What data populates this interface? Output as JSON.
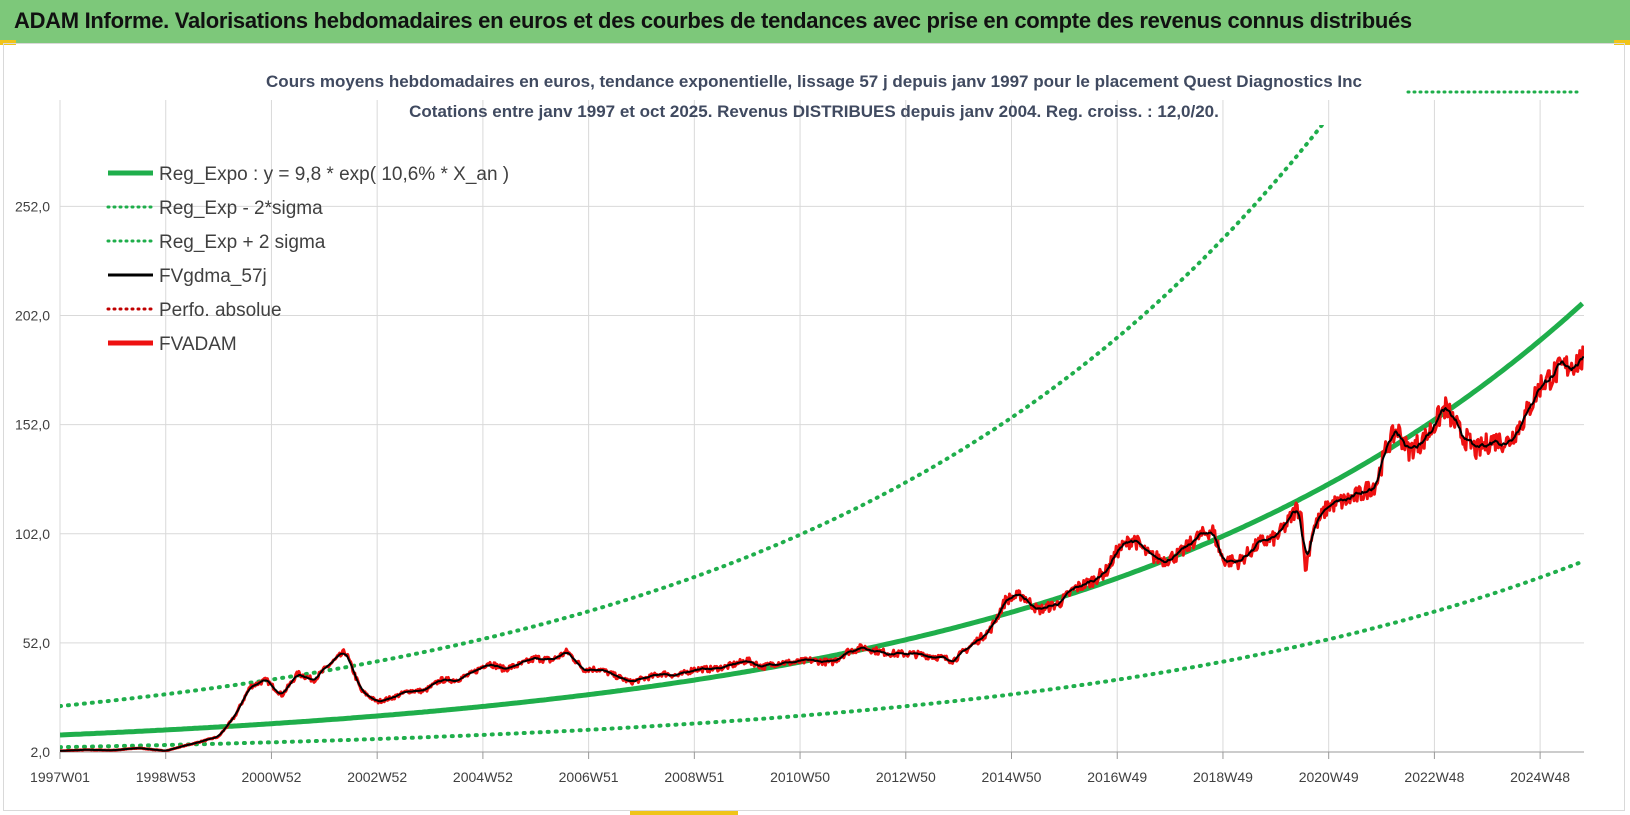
{
  "header": {
    "title": "ADAM Informe. Valorisations hebdomadaires en euros et des courbes de tendances avec prise en compte des revenus connus distribués"
  },
  "colors": {
    "header_bg": "#7dc87a",
    "reg_expo": "#1fae4b",
    "sigma": "#1fae4b",
    "fvgdma": "#000000",
    "perfo": "#c00000",
    "fvadam": "#ee1111",
    "accent_bar": "#f0c419"
  },
  "chart_data": {
    "type": "line",
    "title_line1": "Cours moyens hebdomadaires en euros, tendance exponentielle, lissage 57 j depuis janv 1997 pour le placement Quest Diagnostics Inc",
    "title_line2": "Cotations entre janv 1997 et oct 2025. Revenus DISTRIBUES depuis janv 2004.  Reg. croiss. : 12,0/20.",
    "xlabel": "",
    "ylabel": "",
    "x_tick_labels": [
      "1997W01",
      "1998W53",
      "2000W52",
      "2002W52",
      "2004W52",
      "2006W51",
      "2008W51",
      "2010W50",
      "2012W50",
      "2014W50",
      "2016W49",
      "2018W49",
      "2020W49",
      "2022W48",
      "2024W48"
    ],
    "x_tick_years": [
      1997.0,
      1999.0,
      2001.0,
      2003.0,
      2005.0,
      2007.0,
      2009.0,
      2011.0,
      2013.0,
      2015.0,
      2017.0,
      2019.0,
      2021.0,
      2023.0,
      2025.0
    ],
    "x_range": [
      1997.0,
      2025.83
    ],
    "y_ticks": [
      "2,0",
      "52,0",
      "102,0",
      "152,0",
      "202,0",
      "252,0"
    ],
    "y_tick_values": [
      2,
      52,
      102,
      152,
      202,
      252
    ],
    "ylim": [
      2,
      287
    ],
    "grid": true,
    "legend_position": "top-left",
    "legend": [
      {
        "label": "Reg_Expo : y = 9,8 * exp( 10,6% *  X_an )",
        "style": "solid-thick",
        "color_key": "reg_expo"
      },
      {
        "label": "Reg_Exp - 2*sigma",
        "style": "dotted",
        "color_key": "sigma"
      },
      {
        "label": "Reg_Exp + 2 sigma",
        "style": "dotted",
        "color_key": "sigma"
      },
      {
        "label": "FVgdma_57j",
        "style": "solid",
        "color_key": "fvgdma"
      },
      {
        "label": "Perfo. absolue",
        "style": "dotted",
        "color_key": "perfo"
      },
      {
        "label": "FVADAM",
        "style": "solid-thick",
        "color_key": "fvadam"
      }
    ],
    "reg_expo": {
      "a": 9.8,
      "growth": 0.106
    },
    "sigma_factor_upper": 2.35,
    "sigma_factor_lower": 0.43,
    "series": [
      {
        "name": "FVADAM",
        "points": [
          [
            1997.0,
            2.5
          ],
          [
            1997.5,
            3.0
          ],
          [
            1998.0,
            2.8
          ],
          [
            1998.5,
            3.8
          ],
          [
            1999.0,
            2.5
          ],
          [
            1999.3,
            4.5
          ],
          [
            1999.7,
            7
          ],
          [
            2000.0,
            9
          ],
          [
            2000.3,
            18
          ],
          [
            2000.6,
            32
          ],
          [
            2000.9,
            35
          ],
          [
            2001.2,
            28
          ],
          [
            2001.5,
            38
          ],
          [
            2001.8,
            35
          ],
          [
            2002.1,
            42
          ],
          [
            2002.4,
            48
          ],
          [
            2002.7,
            30
          ],
          [
            2003.0,
            25
          ],
          [
            2003.3,
            27
          ],
          [
            2003.6,
            30
          ],
          [
            2003.9,
            30
          ],
          [
            2004.2,
            35
          ],
          [
            2004.5,
            35
          ],
          [
            2004.8,
            38
          ],
          [
            2005.1,
            43
          ],
          [
            2005.4,
            40
          ],
          [
            2005.7,
            42
          ],
          [
            2006.0,
            45
          ],
          [
            2006.3,
            44
          ],
          [
            2006.6,
            48
          ],
          [
            2006.9,
            40
          ],
          [
            2007.2,
            40
          ],
          [
            2007.5,
            37
          ],
          [
            2007.8,
            34
          ],
          [
            2008.1,
            36
          ],
          [
            2008.4,
            38
          ],
          [
            2008.7,
            37
          ],
          [
            2009.0,
            40
          ],
          [
            2009.3,
            40
          ],
          [
            2009.6,
            41
          ],
          [
            2010.0,
            44
          ],
          [
            2010.3,
            41
          ],
          [
            2010.6,
            43
          ],
          [
            2010.9,
            43
          ],
          [
            2011.2,
            44
          ],
          [
            2011.6,
            43
          ],
          [
            2011.9,
            48
          ],
          [
            2012.2,
            50
          ],
          [
            2012.5,
            48
          ],
          [
            2012.8,
            47
          ],
          [
            2013.1,
            47
          ],
          [
            2013.5,
            46
          ],
          [
            2013.9,
            44
          ],
          [
            2014.3,
            52
          ],
          [
            2014.6,
            58
          ],
          [
            2014.9,
            72
          ],
          [
            2015.2,
            74
          ],
          [
            2015.5,
            67
          ],
          [
            2015.9,
            70
          ],
          [
            2016.2,
            77
          ],
          [
            2016.5,
            80
          ],
          [
            2016.8,
            85
          ],
          [
            2017.0,
            94
          ],
          [
            2017.3,
            100
          ],
          [
            2017.6,
            92
          ],
          [
            2017.9,
            90
          ],
          [
            2018.2,
            93
          ],
          [
            2018.5,
            100
          ],
          [
            2018.8,
            104
          ],
          [
            2019.0,
            90
          ],
          [
            2019.3,
            89
          ],
          [
            2019.7,
            98
          ],
          [
            2020.0,
            100
          ],
          [
            2020.2,
            106
          ],
          [
            2020.4,
            114
          ],
          [
            2020.5,
            110
          ],
          [
            2020.55,
            84
          ],
          [
            2020.7,
            104
          ],
          [
            2021.0,
            115
          ],
          [
            2021.3,
            117
          ],
          [
            2021.6,
            120
          ],
          [
            2021.9,
            125
          ],
          [
            2022.1,
            142
          ],
          [
            2022.3,
            150
          ],
          [
            2022.5,
            140
          ],
          [
            2022.8,
            145
          ],
          [
            2023.0,
            152
          ],
          [
            2023.2,
            160
          ],
          [
            2023.5,
            148
          ],
          [
            2023.8,
            140
          ],
          [
            2024.1,
            145
          ],
          [
            2024.4,
            144
          ],
          [
            2024.7,
            155
          ],
          [
            2025.0,
            170
          ],
          [
            2025.3,
            176
          ],
          [
            2025.6,
            180
          ],
          [
            2025.83,
            182
          ]
        ]
      }
    ]
  }
}
